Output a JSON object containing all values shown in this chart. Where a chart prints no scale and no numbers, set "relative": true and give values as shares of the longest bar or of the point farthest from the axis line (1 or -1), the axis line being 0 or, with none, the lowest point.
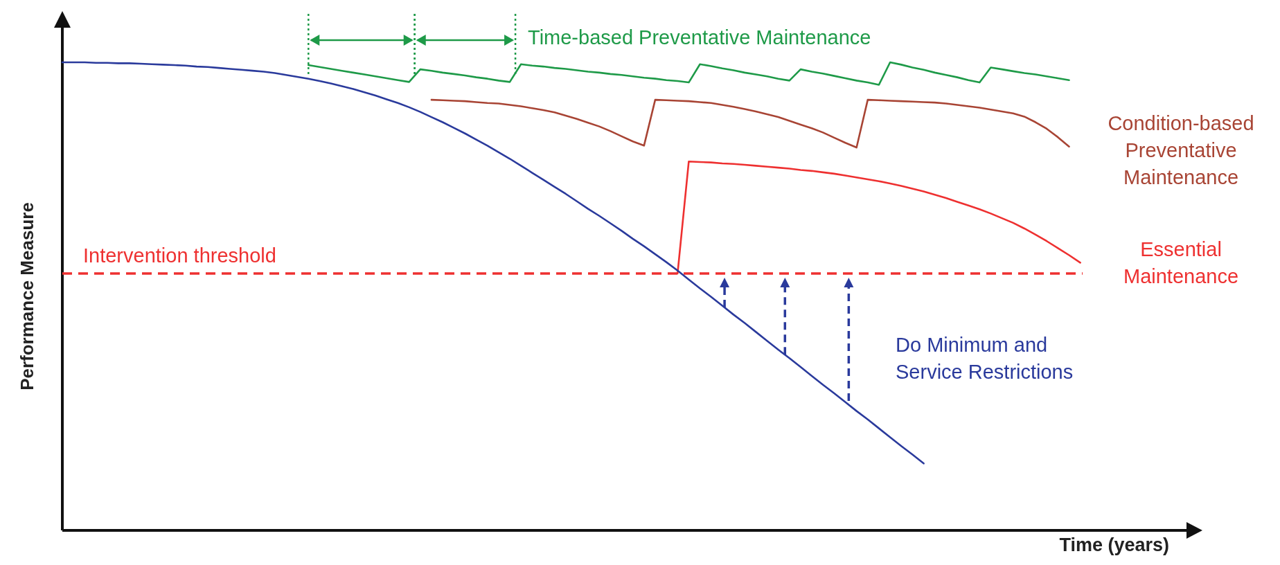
{
  "chart_data": {
    "type": "line",
    "xlabel": "Time (years)",
    "ylabel": "Performance Measure",
    "relative": true,
    "categories": [
      null,
      null,
      null,
      null,
      null,
      null,
      null,
      null,
      null,
      null,
      null,
      null,
      null,
      null,
      null,
      null,
      null,
      null,
      null,
      null,
      null,
      null,
      null,
      null,
      null,
      null,
      null,
      null,
      null,
      null,
      null,
      null,
      null,
      null,
      null,
      null,
      null,
      null,
      null,
      null,
      null,
      null,
      null,
      null,
      null,
      null,
      null,
      null,
      null,
      null,
      null,
      null,
      null,
      null,
      null,
      null,
      null,
      null,
      null,
      null,
      null,
      null,
      null,
      null,
      null,
      null,
      null,
      null,
      null,
      null,
      null,
      null,
      null,
      null,
      null,
      null,
      null,
      null,
      null,
      null,
      null,
      null,
      null,
      null,
      null,
      null,
      null,
      null,
      null,
      null,
      null,
      null,
      null,
      null,
      null,
      null,
      null,
      null,
      null,
      null,
      null
    ],
    "series": [
      {
        "name": "Time-based Preventative Maintenance",
        "color": "#1e9a48",
        "values": [
          null,
          null,
          null,
          null,
          null,
          null,
          null,
          null,
          null,
          null,
          null,
          null,
          null,
          null,
          null,
          null,
          null,
          null,
          null,
          null,
          null,
          null,
          0.994,
          0.99,
          0.986,
          0.982,
          0.978,
          0.974,
          0.97,
          0.966,
          0.962,
          0.958,
          0.985,
          0.982,
          0.978,
          0.975,
          0.972,
          0.968,
          0.965,
          0.961,
          0.958,
          0.996,
          0.993,
          0.991,
          0.988,
          0.986,
          0.983,
          0.98,
          0.978,
          0.975,
          0.973,
          0.97,
          0.967,
          0.965,
          0.962,
          0.96,
          0.957,
          0.996,
          0.992,
          0.987,
          0.983,
          0.978,
          0.974,
          0.97,
          0.965,
          0.961,
          0.985,
          0.98,
          0.976,
          0.971,
          0.966,
          0.961,
          0.957,
          0.952,
          1.0,
          0.995,
          0.989,
          0.984,
          0.978,
          0.973,
          0.968,
          0.962,
          0.957,
          0.989,
          0.985,
          0.981,
          0.977,
          0.974,
          0.97,
          0.966,
          0.962,
          null,
          null,
          null,
          null,
          null,
          null,
          null,
          null,
          null,
          null
        ]
      },
      {
        "name": "Condition-based Preventative Maintenance",
        "color": "#a84434",
        "values": [
          null,
          null,
          null,
          null,
          null,
          null,
          null,
          null,
          null,
          null,
          null,
          null,
          null,
          null,
          null,
          null,
          null,
          null,
          null,
          null,
          null,
          null,
          null,
          null,
          null,
          null,
          null,
          null,
          null,
          null,
          null,
          null,
          null,
          0.92,
          0.919,
          0.918,
          0.917,
          0.915,
          0.913,
          0.912,
          0.909,
          0.906,
          0.902,
          0.898,
          0.893,
          0.886,
          0.879,
          0.871,
          0.863,
          0.853,
          0.842,
          0.831,
          0.822,
          0.92,
          0.919,
          0.918,
          0.917,
          0.915,
          0.913,
          0.909,
          0.905,
          0.9,
          0.895,
          0.889,
          0.883,
          0.875,
          0.867,
          0.859,
          0.85,
          0.839,
          0.828,
          0.818,
          0.92,
          0.919,
          0.918,
          0.917,
          0.916,
          0.915,
          0.914,
          0.912,
          0.909,
          0.906,
          0.903,
          0.899,
          0.895,
          0.891,
          0.884,
          0.872,
          0.858,
          0.84,
          0.82,
          null,
          null,
          null,
          null,
          null,
          null,
          null,
          null,
          null,
          null
        ]
      },
      {
        "name": "Essential Maintenance",
        "color": "#ee3030",
        "values": [
          null,
          null,
          null,
          null,
          null,
          null,
          null,
          null,
          null,
          null,
          null,
          null,
          null,
          null,
          null,
          null,
          null,
          null,
          null,
          null,
          null,
          null,
          null,
          null,
          null,
          null,
          null,
          null,
          null,
          null,
          null,
          null,
          null,
          null,
          null,
          null,
          null,
          null,
          null,
          null,
          null,
          null,
          null,
          null,
          null,
          null,
          null,
          null,
          null,
          null,
          null,
          null,
          null,
          null,
          null,
          0.549,
          0.788,
          0.787,
          0.786,
          0.784,
          0.783,
          0.781,
          0.779,
          0.777,
          0.775,
          0.773,
          0.77,
          0.768,
          0.765,
          0.762,
          0.758,
          0.754,
          0.75,
          0.746,
          0.741,
          0.736,
          0.73,
          0.724,
          0.717,
          0.71,
          0.702,
          0.694,
          0.686,
          0.677,
          0.667,
          0.657,
          0.645,
          0.632,
          0.618,
          0.603,
          0.588,
          0.572,
          null,
          null,
          null,
          null,
          null,
          null,
          null,
          null,
          null
        ]
      },
      {
        "name": "Do Minimum and Service Restrictions",
        "color": "#2a3a9c",
        "values": [
          1.0,
          1.0,
          1.0,
          0.999,
          0.999,
          0.998,
          0.998,
          0.997,
          0.996,
          0.995,
          0.994,
          0.993,
          0.991,
          0.99,
          0.988,
          0.986,
          0.984,
          0.982,
          0.98,
          0.977,
          0.973,
          0.969,
          0.965,
          0.96,
          0.955,
          0.949,
          0.943,
          0.936,
          0.929,
          0.921,
          0.913,
          0.904,
          0.894,
          0.883,
          0.872,
          0.86,
          0.848,
          0.835,
          0.822,
          0.808,
          0.794,
          0.779,
          0.764,
          0.749,
          0.734,
          0.719,
          0.703,
          0.687,
          0.672,
          0.656,
          0.64,
          0.623,
          0.607,
          0.59,
          0.573,
          0.555,
          0.536,
          0.517,
          0.499,
          0.48,
          0.461,
          0.443,
          0.424,
          0.405,
          0.386,
          0.368,
          0.349,
          0.33,
          0.311,
          0.293,
          0.274,
          0.255,
          0.237,
          0.218,
          0.199,
          0.18,
          0.162,
          0.143,
          null,
          null,
          null,
          null,
          null,
          null,
          null,
          null,
          null,
          null,
          null,
          null,
          null,
          null,
          null,
          null,
          null,
          null,
          null,
          null,
          null,
          null,
          null
        ]
      }
    ],
    "ref_lines": [
      {
        "axis": "y",
        "value": 0.549,
        "label": "Intervention threshold",
        "color": "#ee3030",
        "line_style": "dashed"
      }
    ]
  }
}
